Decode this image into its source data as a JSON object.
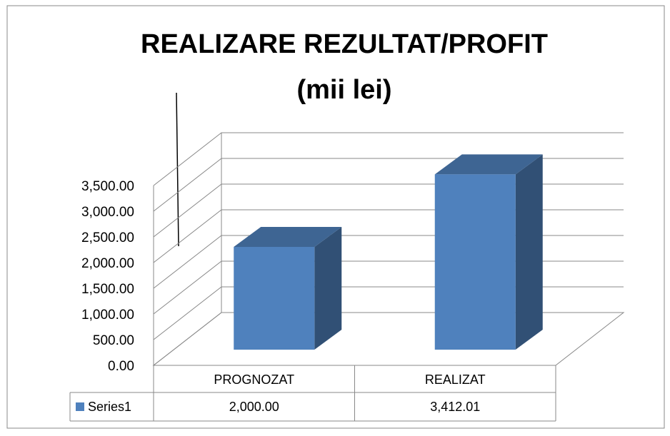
{
  "chart_data": {
    "type": "bar3d",
    "title": [
      "REALIZARE REZULTAT/PROFIT",
      "(mii lei)"
    ],
    "categories": [
      "PROGNOZAT",
      "REALIZAT"
    ],
    "series": [
      {
        "name": "Series1",
        "color": "#4f81bd",
        "values": [
          2000,
          3412.01
        ],
        "value_labels": [
          "2,000.00",
          "3,412.01"
        ]
      }
    ],
    "ylim": [
      0,
      3500
    ],
    "yticks": [
      {
        "value": 0,
        "label": "0.00"
      },
      {
        "value": 500,
        "label": "500.00"
      },
      {
        "value": 1000,
        "label": "1,000.00"
      },
      {
        "value": 1500,
        "label": "1,500.00"
      },
      {
        "value": 2000,
        "label": "2,000.00"
      },
      {
        "value": 2500,
        "label": "2,500.00"
      },
      {
        "value": 3000,
        "label": "3,000.00"
      },
      {
        "value": 3500,
        "label": "3,500.00"
      }
    ],
    "grid": true,
    "data_table": true
  }
}
